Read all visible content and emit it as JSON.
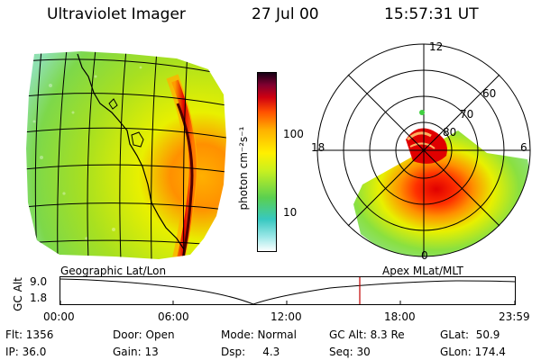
{
  "header": {
    "title": "Ultraviolet Imager",
    "date": "27 Jul 00",
    "time": "15:57:31 UT"
  },
  "colorbar": {
    "label": "photon cm⁻²s⁻¹",
    "ticks": [
      "100",
      "10"
    ]
  },
  "polar": {
    "labels": {
      "top": "12",
      "left": "18",
      "right": "6",
      "bottom": "0"
    },
    "lat_labels": [
      "60",
      "70",
      "80"
    ]
  },
  "timeline": {
    "left_title": "Geographic Lat/Lon",
    "right_title": "Apex MLat/MLT",
    "axis_label": "GC Alt",
    "y_ticks": [
      "9.0",
      "1.8"
    ],
    "x_ticks": [
      "00:00",
      "06:00",
      "12:00",
      "18:00",
      "23:59"
    ],
    "marker_color": "#c00000"
  },
  "info": {
    "flt": "Flt: 1356",
    "ip": "IP: 36.0",
    "door": "Door: Open",
    "gain": "Gain: 13",
    "mode": "Mode: Normal",
    "dsp": "Dsp:     4.3",
    "gcalt": "GC Alt: 8.3 Re",
    "seq": "Seq: 30",
    "glat": "GLat:  50.9",
    "glon": "GLon: 174.4"
  }
}
